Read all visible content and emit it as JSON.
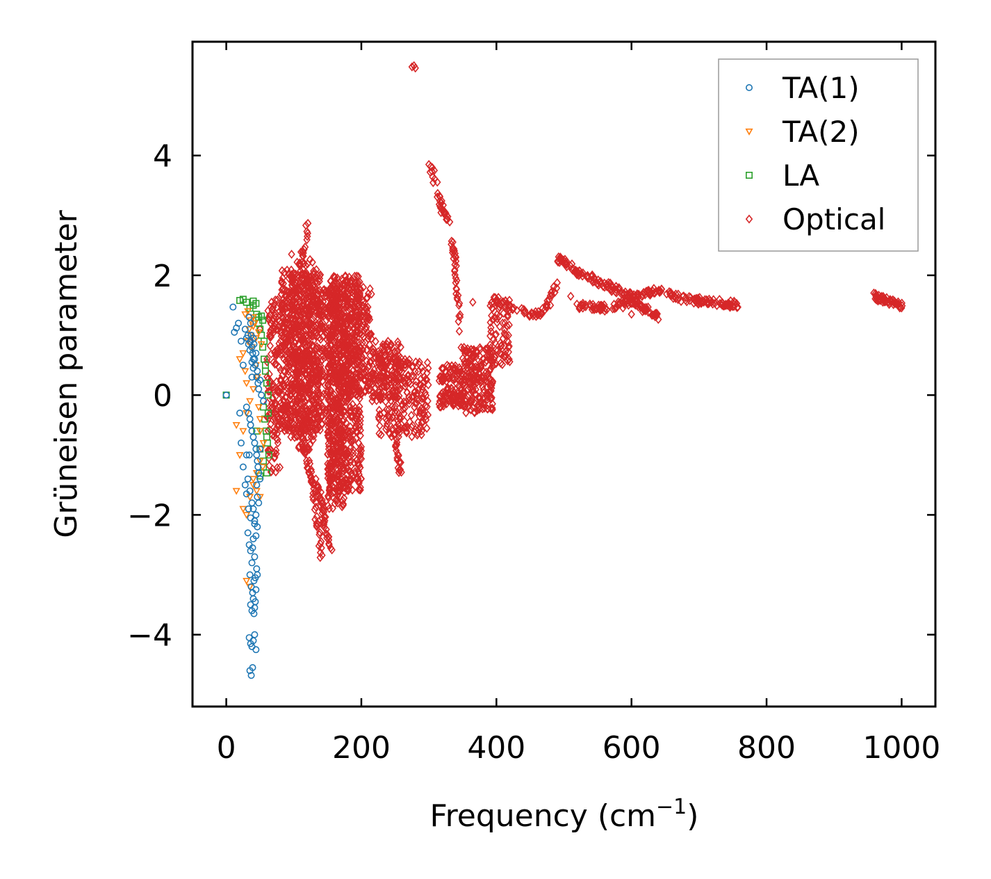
{
  "chart_data": {
    "type": "scatter",
    "title": "",
    "xlabel": "Frequency (cm",
    "xlabel_sup": "−1",
    "xlabel_end": ")",
    "ylabel": "Grüneisen parameter",
    "xlim": [
      -50,
      1050
    ],
    "ylim": [
      -5.2,
      5.9
    ],
    "xticks": [
      0,
      200,
      400,
      600,
      800,
      1000
    ],
    "xtick_labels": [
      "0",
      "200",
      "400",
      "600",
      "800",
      "1000"
    ],
    "yticks": [
      -4,
      -2,
      0,
      2,
      4
    ],
    "ytick_labels": [
      "−4",
      "−2",
      "0",
      "2",
      "4"
    ],
    "legend_position": "top-right",
    "series": [
      {
        "name": "TA(1)",
        "marker": "circle",
        "color": "#1f77b4",
        "x": [
          0,
          10,
          12,
          15,
          18,
          22,
          25,
          28,
          30,
          32,
          33,
          35,
          36,
          37,
          38,
          39,
          40,
          41,
          42,
          43,
          44,
          45,
          46,
          47,
          48,
          50,
          52,
          55,
          30,
          33,
          35,
          36,
          38,
          40,
          42,
          44,
          45,
          46,
          47,
          48,
          20,
          22,
          25,
          28,
          30,
          32,
          35,
          38,
          40,
          42,
          44,
          45,
          46,
          48,
          50,
          32,
          34,
          36,
          38,
          40,
          42,
          44,
          46,
          48,
          50,
          35,
          37,
          39,
          41,
          43,
          45,
          36,
          38,
          40,
          42,
          44,
          46,
          34,
          36,
          38,
          40,
          42,
          44,
          30,
          33,
          36,
          39,
          42,
          35,
          37,
          39,
          41,
          43,
          34,
          36,
          38,
          40,
          34,
          36,
          38,
          40
        ],
        "y": [
          0,
          1.47,
          1.05,
          1.12,
          1.2,
          0.9,
          0.5,
          1.1,
          0.95,
          1.0,
          0.85,
          0.75,
          0.9,
          1.0,
          0.8,
          0.7,
          0.95,
          0.85,
          0.6,
          0.5,
          0.7,
          0.3,
          0.4,
          0.2,
          0.1,
          0.25,
          0.0,
          -0.1,
          -0.2,
          -0.3,
          -0.4,
          -0.5,
          -0.6,
          -0.7,
          -0.8,
          -0.9,
          -1.0,
          -1.1,
          -1.2,
          -1.3,
          -0.3,
          -0.8,
          -1.2,
          -1.5,
          -1.0,
          -1.4,
          -1.6,
          -1.8,
          -1.9,
          -2.1,
          -2.0,
          -1.5,
          -1.7,
          -1.3,
          -0.9,
          -2.3,
          -2.5,
          -2.6,
          -2.8,
          -2.4,
          -2.7,
          -2.35,
          -2.2,
          -1.8,
          -1.4,
          -3.0,
          -3.2,
          -3.3,
          -3.1,
          -3.05,
          -2.9,
          -3.5,
          -3.6,
          -3.4,
          -3.55,
          -3.25,
          -3.0,
          -4.05,
          -4.15,
          -4.2,
          -4.1,
          -4.0,
          -4.25,
          -1.65,
          -1.9,
          -2.05,
          -2.55,
          -2.15,
          -4.6,
          -4.68,
          -4.55,
          -3.65,
          -3.45,
          -1.0,
          -0.5,
          0.3,
          0.6,
          1.3,
          1.2,
          0.55,
          0.45
        ]
      },
      {
        "name": "TA(2)",
        "marker": "triangle-down",
        "color": "#ff7f0e",
        "x": [
          15,
          20,
          25,
          28,
          30,
          32,
          34,
          36,
          38,
          40,
          42,
          44,
          46,
          48,
          50,
          52,
          54,
          25,
          30,
          35,
          40,
          45,
          50,
          15,
          20,
          25,
          30,
          35,
          40,
          45,
          50,
          55,
          30,
          35,
          40,
          45,
          50,
          28,
          32,
          36,
          40,
          44,
          48,
          52
        ],
        "y": [
          -0.5,
          0.6,
          0.7,
          0.4,
          0.2,
          0.9,
          1.1,
          1.0,
          0.8,
          1.3,
          1.2,
          0.5,
          0.3,
          -0.2,
          -0.6,
          -0.9,
          -1.2,
          -1.9,
          -2.0,
          -1.7,
          -1.5,
          -1.6,
          -1.1,
          -1.6,
          -1.0,
          -0.6,
          -0.3,
          -0.1,
          0.1,
          0.3,
          -0.4,
          -0.8,
          -3.1,
          -3.2,
          -1.4,
          -1.3,
          -1.7,
          1.35,
          1.4,
          1.25,
          1.15,
          0.95,
          1.05,
          0.85
        ]
      },
      {
        "name": "LA",
        "marker": "square",
        "color": "#2ca02c",
        "x": [
          0,
          20,
          25,
          30,
          35,
          40,
          45,
          48,
          50,
          52,
          54,
          56,
          58,
          60,
          62,
          55,
          57,
          59,
          61,
          63,
          45,
          50,
          55,
          60,
          50,
          55,
          60,
          62,
          58,
          56,
          54,
          52,
          40,
          44,
          48
        ],
        "y": [
          0,
          1.58,
          1.6,
          1.55,
          1.45,
          1.5,
          1.35,
          1.2,
          1.1,
          1.0,
          0.8,
          0.6,
          0.4,
          0.2,
          0.0,
          -0.2,
          -0.4,
          -0.6,
          -0.8,
          -1.0,
          -0.6,
          -0.9,
          -1.2,
          -1.3,
          -1.35,
          -1.1,
          -0.7,
          -0.3,
          0.5,
          0.9,
          1.25,
          1.32,
          1.57,
          1.53,
          1.3
        ]
      }
    ],
    "optical_clusters": [
      {
        "x": [
          60,
          80
        ],
        "y": [
          -1.3,
          1.6
        ],
        "n": 140
      },
      {
        "x": [
          80,
          140
        ],
        "y": [
          -0.6,
          2.1
        ],
        "n": 700
      },
      {
        "x": [
          95,
          130
        ],
        "y": [
          -1.0,
          2.4
        ],
        "n": 200
      },
      {
        "x": [
          140,
          170
        ],
        "y": [
          -0.5,
          1.8
        ],
        "n": 200
      },
      {
        "x": [
          150,
          200
        ],
        "y": [
          -1.6,
          2.0
        ],
        "n": 650
      },
      {
        "x": [
          150,
          175
        ],
        "y": [
          -1.9,
          -0.5
        ],
        "n": 120
      },
      {
        "x": [
          170,
          215
        ],
        "y": [
          0.0,
          1.8
        ],
        "n": 220
      },
      {
        "x": [
          215,
          260
        ],
        "y": [
          -0.1,
          0.9
        ],
        "n": 140
      },
      {
        "x": [
          225,
          300
        ],
        "y": [
          -0.7,
          0.6
        ],
        "n": 220
      },
      {
        "x": [
          315,
          350
        ],
        "y": [
          -0.2,
          0.5
        ],
        "n": 120
      },
      {
        "x": [
          350,
          395
        ],
        "y": [
          -0.3,
          0.8
        ],
        "n": 200
      },
      {
        "x": [
          390,
          420
        ],
        "y": [
          0.5,
          1.6
        ],
        "n": 80
      }
    ],
    "optical_paths": [
      {
        "x": [
          110,
          115,
          120
        ],
        "y": [
          2.2,
          2.5,
          2.85
        ],
        "n": 15
      },
      {
        "x": [
          110,
          120,
          128,
          135,
          142
        ],
        "y": [
          -0.6,
          -1.1,
          -1.5,
          -2.2,
          -2.75
        ],
        "n": 60
      },
      {
        "x": [
          135,
          145,
          155
        ],
        "y": [
          -1.4,
          -2.1,
          -2.6
        ],
        "n": 40
      },
      {
        "x": [
          245,
          252,
          258
        ],
        "y": [
          -0.3,
          -0.9,
          -1.3
        ],
        "n": 25
      },
      {
        "x": [
          300,
          310,
          320,
          330
        ],
        "y": [
          3.85,
          3.5,
          3.1,
          2.9
        ],
        "n": 30
      },
      {
        "x": [
          335,
          340,
          345,
          350
        ],
        "y": [
          2.6,
          2.0,
          1.3,
          0.6
        ],
        "n": 35
      },
      {
        "x": [
          395,
          420,
          450,
          470,
          490
        ],
        "y": [
          1.6,
          1.5,
          1.35,
          1.4,
          1.9
        ],
        "n": 60
      },
      {
        "x": [
          490,
          520,
          560,
          600,
          640,
          680,
          720,
          765
        ],
        "y": [
          2.3,
          2.05,
          1.85,
          1.65,
          1.75,
          1.6,
          1.55,
          1.5
        ],
        "n": 220
      },
      {
        "x": [
          520,
          560,
          600,
          640
        ],
        "y": [
          1.5,
          1.45,
          1.55,
          1.3
        ],
        "n": 90
      },
      {
        "x": [
          960,
          1000
        ],
        "y": [
          1.65,
          1.5
        ],
        "n": 50
      }
    ],
    "optical_points": {
      "x": [
        275,
        278,
        280,
        300,
        305,
        308,
        322,
        328,
        340,
        365,
        480,
        510,
        582,
        600,
        615,
        120,
        50,
        35
      ],
      "y": [
        5.48,
        5.5,
        5.46,
        3.85,
        3.8,
        3.75,
        3.05,
        2.98,
        2.3,
        1.55,
        1.5,
        1.65,
        1.78,
        1.35,
        1.5,
        2.65,
        1.1,
        0.9
      ]
    },
    "optical_legend": "Optical",
    "optical_color": "#d62728"
  }
}
